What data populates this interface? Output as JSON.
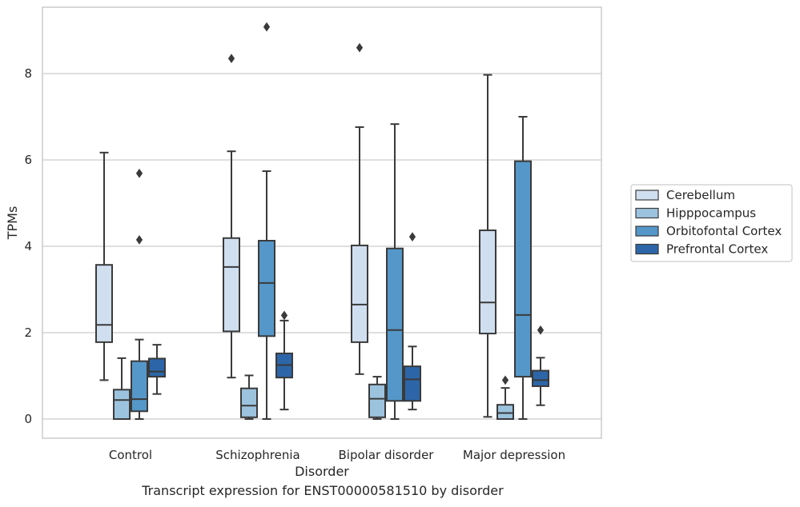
{
  "chart_data": {
    "type": "box",
    "title": "",
    "xlabel": "Disorder",
    "ylabel": "TPMs",
    "caption": "Transcript expression for ENST00000581510 by disorder",
    "categories": [
      "Control",
      "Schizophrenia",
      "Bipolar disorder",
      "Major depression"
    ],
    "yticks": [
      0,
      2,
      4,
      6,
      8
    ],
    "ylim": [
      -0.45,
      9.6
    ],
    "grid": "horizontal",
    "legend_position": "right",
    "series": [
      {
        "name": "Cerebellum",
        "color": "#d0dff0",
        "boxes": [
          {
            "whislo": 0.9,
            "q1": 1.78,
            "med": 2.18,
            "q3": 3.57,
            "whishi": 6.17,
            "fliers": []
          },
          {
            "whislo": 0.96,
            "q1": 2.03,
            "med": 3.52,
            "q3": 4.19,
            "whishi": 6.2,
            "fliers": [
              8.35
            ]
          },
          {
            "whislo": 1.04,
            "q1": 1.78,
            "med": 2.65,
            "q3": 4.02,
            "whishi": 6.76,
            "fliers": [
              8.6
            ]
          },
          {
            "whislo": 0.05,
            "q1": 1.98,
            "med": 2.7,
            "q3": 4.37,
            "whishi": 7.97,
            "fliers": []
          }
        ]
      },
      {
        "name": "Hipppocampus",
        "color": "#9cc3de",
        "boxes": [
          {
            "whislo": 0.0,
            "q1": 0.0,
            "med": 0.44,
            "q3": 0.68,
            "whishi": 1.41,
            "fliers": []
          },
          {
            "whislo": 0.0,
            "q1": 0.04,
            "med": 0.31,
            "q3": 0.71,
            "whishi": 1.01,
            "fliers": []
          },
          {
            "whislo": 0.0,
            "q1": 0.04,
            "med": 0.47,
            "q3": 0.8,
            "whishi": 0.98,
            "fliers": []
          },
          {
            "whislo": 0.0,
            "q1": 0.0,
            "med": 0.14,
            "q3": 0.33,
            "whishi": 0.72,
            "fliers": [
              0.9
            ]
          }
        ]
      },
      {
        "name": "Orbitofontal Cortex",
        "color": "#5597c8",
        "boxes": [
          {
            "whislo": 0.0,
            "q1": 0.18,
            "med": 0.46,
            "q3": 1.34,
            "whishi": 1.84,
            "fliers": [
              4.15,
              5.69
            ]
          },
          {
            "whislo": 0.0,
            "q1": 1.92,
            "med": 3.15,
            "q3": 4.13,
            "whishi": 5.74,
            "fliers": [
              9.08
            ]
          },
          {
            "whislo": 0.0,
            "q1": 0.42,
            "med": 2.06,
            "q3": 3.95,
            "whishi": 6.83,
            "fliers": []
          },
          {
            "whislo": 0.0,
            "q1": 0.98,
            "med": 2.41,
            "q3": 5.97,
            "whishi": 7.0,
            "fliers": []
          }
        ]
      },
      {
        "name": "Prefrontal Cortex",
        "color": "#2c66a8",
        "boxes": [
          {
            "whislo": 0.58,
            "q1": 0.98,
            "med": 1.1,
            "q3": 1.4,
            "whishi": 1.72,
            "fliers": []
          },
          {
            "whislo": 0.22,
            "q1": 0.96,
            "med": 1.25,
            "q3": 1.52,
            "whishi": 2.28,
            "fliers": [
              2.4
            ]
          },
          {
            "whislo": 0.22,
            "q1": 0.42,
            "med": 0.92,
            "q3": 1.22,
            "whishi": 1.68,
            "fliers": [
              4.22
            ]
          },
          {
            "whislo": 0.32,
            "q1": 0.76,
            "med": 0.9,
            "q3": 1.12,
            "whishi": 1.42,
            "fliers": [
              2.06
            ]
          }
        ]
      }
    ]
  }
}
